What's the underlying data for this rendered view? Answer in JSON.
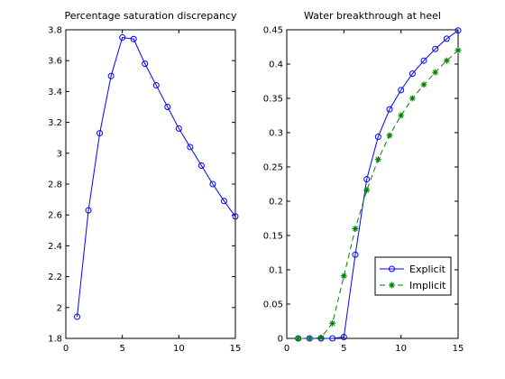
{
  "chart_data": [
    {
      "type": "line",
      "title": "Percentage saturation discrepancy",
      "xlabel": "",
      "ylabel": "",
      "xlim": [
        0,
        15
      ],
      "ylim": [
        1.8,
        3.8
      ],
      "xticks": [
        0,
        5,
        10,
        15
      ],
      "yticks": [
        1.8,
        2,
        2.2,
        2.4,
        2.6,
        2.8,
        3,
        3.2,
        3.4,
        3.6,
        3.8
      ],
      "grid": false,
      "series": [
        {
          "color": "#0000ff",
          "line_style": "solid",
          "marker": "circle",
          "x": [
            1,
            2,
            3,
            4,
            5,
            6,
            7,
            8,
            9,
            10,
            11,
            12,
            13,
            14,
            15
          ],
          "y": [
            1.94,
            2.63,
            3.13,
            3.5,
            3.75,
            3.74,
            3.58,
            3.44,
            3.3,
            3.16,
            3.04,
            2.92,
            2.8,
            2.69,
            2.59
          ]
        }
      ]
    },
    {
      "type": "line",
      "title": "Water breakthrough at heel",
      "xlabel": "",
      "ylabel": "",
      "xlim": [
        0,
        15
      ],
      "ylim": [
        0,
        0.45
      ],
      "xticks": [
        0,
        5,
        10,
        15
      ],
      "yticks": [
        0,
        0.05,
        0.1,
        0.15,
        0.2,
        0.25,
        0.3,
        0.35,
        0.4,
        0.45
      ],
      "grid": false,
      "legend_position": "lower-right",
      "series": [
        {
          "name": "Explicit",
          "color": "#0000ff",
          "line_style": "solid",
          "marker": "circle",
          "x": [
            1,
            2,
            3,
            4,
            5,
            6,
            7,
            8,
            9,
            10,
            11,
            12,
            13,
            14,
            15
          ],
          "y": [
            0,
            0,
            0,
            0,
            0.002,
            0.122,
            0.232,
            0.294,
            0.334,
            0.362,
            0.386,
            0.405,
            0.422,
            0.437,
            0.449
          ]
        },
        {
          "name": "Implicit",
          "color": "#008000",
          "line_style": "dashed",
          "marker": "star",
          "x": [
            1,
            2,
            3,
            4,
            5,
            6,
            7,
            8,
            9,
            10,
            11,
            12,
            13,
            14,
            15
          ],
          "y": [
            0,
            0,
            0.001,
            0.022,
            0.091,
            0.16,
            0.216,
            0.261,
            0.296,
            0.325,
            0.35,
            0.37,
            0.388,
            0.405,
            0.42
          ]
        }
      ]
    }
  ]
}
